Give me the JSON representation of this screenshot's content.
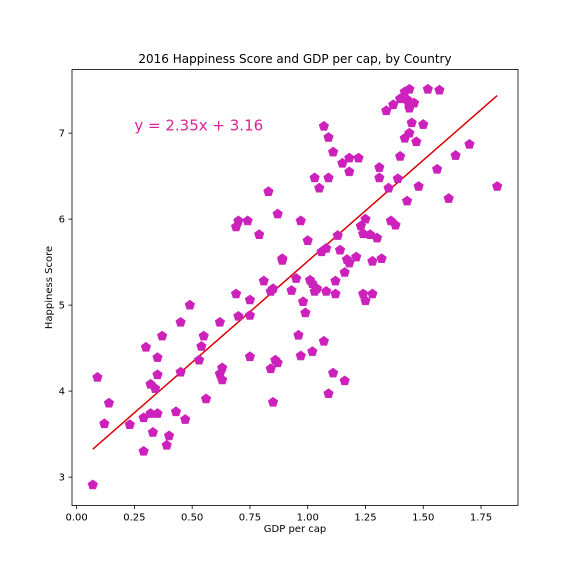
{
  "chart_data": {
    "type": "scatter",
    "title": "2016 Happiness Score and GDP per cap, by Country",
    "xlabel": "GDP per cap",
    "ylabel": "Happiness Score",
    "xlim": [
      -0.02,
      1.91
    ],
    "ylim": [
      2.67,
      7.74
    ],
    "x_ticks": [
      0.0,
      0.25,
      0.5,
      0.75,
      1.0,
      1.25,
      1.5,
      1.75
    ],
    "x_tick_labels": [
      "0.00",
      "0.25",
      "0.50",
      "0.75",
      "1.00",
      "1.25",
      "1.50",
      "1.75"
    ],
    "y_ticks": [
      3,
      4,
      5,
      6,
      7
    ],
    "y_tick_labels": [
      "3",
      "4",
      "5",
      "6",
      "7"
    ],
    "grid": false,
    "marker_color": "#cc22bb",
    "regression": {
      "slope": 2.35,
      "intercept": 3.16,
      "x_range": [
        0.07,
        1.82
      ],
      "color": "#dd0000",
      "label": "y = 2.35x + 3.16",
      "label_color": "#dd2299",
      "label_pos": [
        0.25,
        7.03
      ]
    },
    "points": [
      [
        0.07,
        2.91
      ],
      [
        0.09,
        4.16
      ],
      [
        0.12,
        3.62
      ],
      [
        0.14,
        3.86
      ],
      [
        0.23,
        3.61
      ],
      [
        0.29,
        3.3
      ],
      [
        0.29,
        3.69
      ],
      [
        0.3,
        4.51
      ],
      [
        0.32,
        4.08
      ],
      [
        0.32,
        3.74
      ],
      [
        0.33,
        3.52
      ],
      [
        0.34,
        4.03
      ],
      [
        0.35,
        4.39
      ],
      [
        0.35,
        4.19
      ],
      [
        0.35,
        3.74
      ],
      [
        0.37,
        4.64
      ],
      [
        0.39,
        3.37
      ],
      [
        0.4,
        3.48
      ],
      [
        0.43,
        3.76
      ],
      [
        0.45,
        4.22
      ],
      [
        0.45,
        4.8
      ],
      [
        0.47,
        3.67
      ],
      [
        0.49,
        5.0
      ],
      [
        0.53,
        4.36
      ],
      [
        0.54,
        4.52
      ],
      [
        0.55,
        4.64
      ],
      [
        0.56,
        3.91
      ],
      [
        0.62,
        4.8
      ],
      [
        0.62,
        4.2
      ],
      [
        0.63,
        4.27
      ],
      [
        0.63,
        4.13
      ],
      [
        0.69,
        5.13
      ],
      [
        0.69,
        5.91
      ],
      [
        0.7,
        5.98
      ],
      [
        0.7,
        4.87
      ],
      [
        0.74,
        5.98
      ],
      [
        0.75,
        5.06
      ],
      [
        0.75,
        4.88
      ],
      [
        0.75,
        4.4
      ],
      [
        0.79,
        5.82
      ],
      [
        0.81,
        5.28
      ],
      [
        0.83,
        6.32
      ],
      [
        0.84,
        5.16
      ],
      [
        0.84,
        4.26
      ],
      [
        0.85,
        3.87
      ],
      [
        0.85,
        5.19
      ],
      [
        0.86,
        4.36
      ],
      [
        0.87,
        6.06
      ],
      [
        0.87,
        4.33
      ],
      [
        0.89,
        5.52
      ],
      [
        0.89,
        5.54
      ],
      [
        0.93,
        5.17
      ],
      [
        0.95,
        5.31
      ],
      [
        0.96,
        4.65
      ],
      [
        0.97,
        5.98
      ],
      [
        0.97,
        4.41
      ],
      [
        0.98,
        5.04
      ],
      [
        0.99,
        4.91
      ],
      [
        1.0,
        5.75
      ],
      [
        1.01,
        5.29
      ],
      [
        1.02,
        5.25
      ],
      [
        1.02,
        4.46
      ],
      [
        1.03,
        6.48
      ],
      [
        1.03,
        5.16
      ],
      [
        1.04,
        5.19
      ],
      [
        1.05,
        6.36
      ],
      [
        1.06,
        5.62
      ],
      [
        1.07,
        4.58
      ],
      [
        1.07,
        7.08
      ],
      [
        1.08,
        5.16
      ],
      [
        1.08,
        5.66
      ],
      [
        1.09,
        6.95
      ],
      [
        1.09,
        6.48
      ],
      [
        1.09,
        3.97
      ],
      [
        1.11,
        6.78
      ],
      [
        1.11,
        4.21
      ],
      [
        1.12,
        5.28
      ],
      [
        1.12,
        5.13
      ],
      [
        1.13,
        5.81
      ],
      [
        1.14,
        5.64
      ],
      [
        1.15,
        6.65
      ],
      [
        1.16,
        4.12
      ],
      [
        1.16,
        5.38
      ],
      [
        1.17,
        5.53
      ],
      [
        1.18,
        5.49
      ],
      [
        1.18,
        6.71
      ],
      [
        1.18,
        6.55
      ],
      [
        1.21,
        5.56
      ],
      [
        1.22,
        6.71
      ],
      [
        1.23,
        5.92
      ],
      [
        1.24,
        5.13
      ],
      [
        1.24,
        5.83
      ],
      [
        1.25,
        6.0
      ],
      [
        1.25,
        5.05
      ],
      [
        1.27,
        5.82
      ],
      [
        1.28,
        5.13
      ],
      [
        1.28,
        5.51
      ],
      [
        1.3,
        5.78
      ],
      [
        1.31,
        6.6
      ],
      [
        1.31,
        6.48
      ],
      [
        1.32,
        5.54
      ],
      [
        1.34,
        7.26
      ],
      [
        1.35,
        6.36
      ],
      [
        1.36,
        5.98
      ],
      [
        1.37,
        7.33
      ],
      [
        1.38,
        5.93
      ],
      [
        1.39,
        6.47
      ],
      [
        1.4,
        7.4
      ],
      [
        1.4,
        6.73
      ],
      [
        1.42,
        6.94
      ],
      [
        1.42,
        7.48
      ],
      [
        1.43,
        7.39
      ],
      [
        1.43,
        6.21
      ],
      [
        1.44,
        7.51
      ],
      [
        1.44,
        7.32
      ],
      [
        1.44,
        7.29
      ],
      [
        1.44,
        7.0
      ],
      [
        1.45,
        7.12
      ],
      [
        1.46,
        7.35
      ],
      [
        1.47,
        6.9
      ],
      [
        1.48,
        6.38
      ],
      [
        1.5,
        7.1
      ],
      [
        1.52,
        7.51
      ],
      [
        1.56,
        6.58
      ],
      [
        1.57,
        7.5
      ],
      [
        1.61,
        6.24
      ],
      [
        1.64,
        6.74
      ],
      [
        1.7,
        6.87
      ],
      [
        1.82,
        6.38
      ]
    ]
  }
}
